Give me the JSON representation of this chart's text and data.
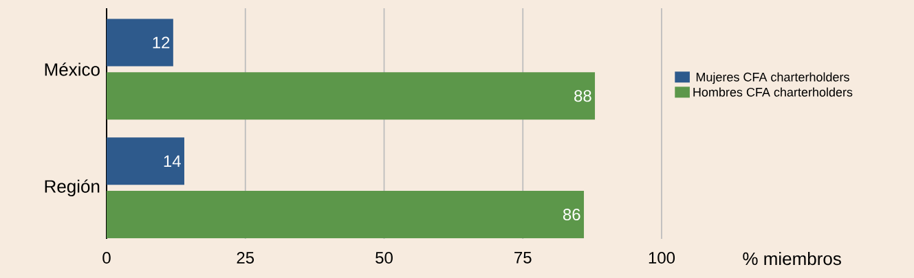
{
  "chart_data": {
    "type": "bar",
    "orientation": "horizontal",
    "xlabel": "% miembros",
    "categories": [
      "México",
      "Región"
    ],
    "series": [
      {
        "name": "Mujeres CFA charterholders",
        "color": "#2e5a8c",
        "values": [
          12,
          14
        ]
      },
      {
        "name": "Hombres CFA charterholders",
        "color": "#5c974a",
        "values": [
          88,
          86
        ]
      }
    ],
    "xlim": [
      0,
      100
    ],
    "xticks": [
      0,
      25,
      50,
      75,
      100
    ],
    "grid": "x",
    "legend": "right",
    "data_labels": true
  }
}
